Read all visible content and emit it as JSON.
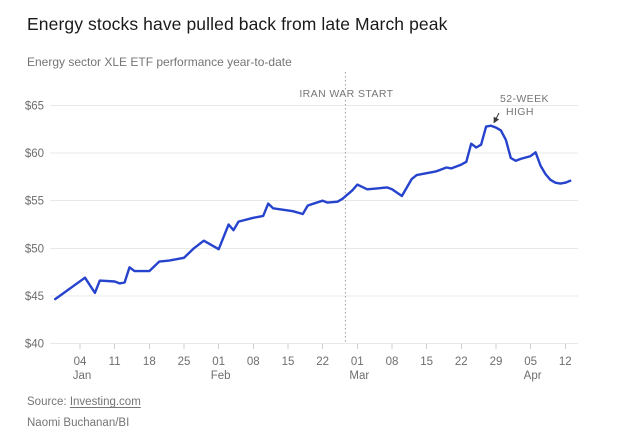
{
  "header": {
    "title": "Energy stocks have pulled back from late March peak",
    "subtitle": "Energy sector XLE ETF performance year-to-date"
  },
  "footer": {
    "source_prefix": "Source: ",
    "source_link": "Investing.com",
    "byline": "Naomi Buchanan/BI"
  },
  "colors": {
    "line": "#2643cd",
    "grid": "#e8e8e8",
    "tick_mark": "#cccccc",
    "axis_text": "#6e6e6e",
    "annotation_text": "#757575",
    "event_line": "#9e9e9e",
    "arrow": "#3a3a3a",
    "title_text": "#1a1a1a"
  },
  "chart_data": {
    "type": "line",
    "title": "Energy sector XLE ETF performance year-to-date",
    "ylabel": "",
    "xlabel": "",
    "ylim": [
      40,
      65
    ],
    "grid": "horizontal",
    "y_ticks": [
      {
        "value": 40,
        "label": "$40"
      },
      {
        "value": 45,
        "label": "$45"
      },
      {
        "value": 50,
        "label": "$50"
      },
      {
        "value": 55,
        "label": "$55"
      },
      {
        "value": 60,
        "label": "$60"
      },
      {
        "value": 65,
        "label": "$65"
      }
    ],
    "x_ticks": [
      {
        "date": "Jan 04",
        "label": "04",
        "month": "Jan"
      },
      {
        "date": "Jan 11",
        "label": "11",
        "month": ""
      },
      {
        "date": "Jan 18",
        "label": "18",
        "month": ""
      },
      {
        "date": "Jan 25",
        "label": "25",
        "month": ""
      },
      {
        "date": "Feb 01",
        "label": "01",
        "month": "Feb"
      },
      {
        "date": "Feb 08",
        "label": "08",
        "month": ""
      },
      {
        "date": "Feb 15",
        "label": "15",
        "month": ""
      },
      {
        "date": "Feb 22",
        "label": "22",
        "month": ""
      },
      {
        "date": "Mar 01",
        "label": "01",
        "month": "Mar"
      },
      {
        "date": "Mar 08",
        "label": "08",
        "month": ""
      },
      {
        "date": "Mar 15",
        "label": "15",
        "month": ""
      },
      {
        "date": "Mar 22",
        "label": "22",
        "month": ""
      },
      {
        "date": "Mar 29",
        "label": "29",
        "month": ""
      },
      {
        "date": "Apr 05",
        "label": "05",
        "month": "Apr"
      },
      {
        "date": "Apr 12",
        "label": "12",
        "month": ""
      }
    ],
    "annotations": {
      "event_line": {
        "label": "IRAN WAR START",
        "date": "Feb 27",
        "style": "dotted-vertical"
      },
      "high": {
        "label_lines": [
          "52-WEEK",
          "HIGH"
        ],
        "date": "Mar 28",
        "value": 62.9
      }
    },
    "series": [
      {
        "name": "XLE",
        "points": [
          {
            "date": "Dec 30",
            "value": 44.65
          },
          {
            "date": "Jan 05",
            "value": 46.9
          },
          {
            "date": "Jan 07",
            "value": 45.3
          },
          {
            "date": "Jan 08",
            "value": 46.6
          },
          {
            "date": "Jan 11",
            "value": 46.5
          },
          {
            "date": "Jan 12",
            "value": 46.3
          },
          {
            "date": "Jan 13",
            "value": 46.4
          },
          {
            "date": "Jan 14",
            "value": 48.0
          },
          {
            "date": "Jan 15",
            "value": 47.6
          },
          {
            "date": "Jan 18",
            "value": 47.6
          },
          {
            "date": "Jan 20",
            "value": 48.6
          },
          {
            "date": "Jan 22",
            "value": 48.7
          },
          {
            "date": "Jan 25",
            "value": 49.0
          },
          {
            "date": "Jan 27",
            "value": 50.0
          },
          {
            "date": "Jan 29",
            "value": 50.8
          },
          {
            "date": "Feb 01",
            "value": 49.9
          },
          {
            "date": "Feb 03",
            "value": 52.5
          },
          {
            "date": "Feb 04",
            "value": 51.9
          },
          {
            "date": "Feb 05",
            "value": 52.8
          },
          {
            "date": "Feb 08",
            "value": 53.2
          },
          {
            "date": "Feb 10",
            "value": 53.4
          },
          {
            "date": "Feb 11",
            "value": 54.7
          },
          {
            "date": "Feb 12",
            "value": 54.2
          },
          {
            "date": "Feb 16",
            "value": 53.9
          },
          {
            "date": "Feb 18",
            "value": 53.6
          },
          {
            "date": "Feb 19",
            "value": 54.5
          },
          {
            "date": "Feb 22",
            "value": 55.0
          },
          {
            "date": "Feb 23",
            "value": 54.8
          },
          {
            "date": "Feb 25",
            "value": 54.9
          },
          {
            "date": "Feb 26",
            "value": 55.2
          },
          {
            "date": "Feb 28",
            "value": 56.1
          },
          {
            "date": "Mar 01",
            "value": 56.7
          },
          {
            "date": "Mar 03",
            "value": 56.2
          },
          {
            "date": "Mar 05",
            "value": 56.3
          },
          {
            "date": "Mar 07",
            "value": 56.4
          },
          {
            "date": "Mar 08",
            "value": 56.2
          },
          {
            "date": "Mar 10",
            "value": 55.5
          },
          {
            "date": "Mar 12",
            "value": 57.3
          },
          {
            "date": "Mar 13",
            "value": 57.7
          },
          {
            "date": "Mar 15",
            "value": 57.9
          },
          {
            "date": "Mar 17",
            "value": 58.1
          },
          {
            "date": "Mar 19",
            "value": 58.5
          },
          {
            "date": "Mar 20",
            "value": 58.4
          },
          {
            "date": "Mar 22",
            "value": 58.8
          },
          {
            "date": "Mar 23",
            "value": 59.1
          },
          {
            "date": "Mar 24",
            "value": 61.0
          },
          {
            "date": "Mar 25",
            "value": 60.6
          },
          {
            "date": "Mar 26",
            "value": 60.9
          },
          {
            "date": "Mar 27",
            "value": 62.8
          },
          {
            "date": "Mar 28",
            "value": 62.9
          },
          {
            "date": "Mar 29",
            "value": 62.7
          },
          {
            "date": "Mar 30",
            "value": 62.4
          },
          {
            "date": "Mar 31",
            "value": 61.4
          },
          {
            "date": "Apr 01",
            "value": 59.5
          },
          {
            "date": "Apr 02",
            "value": 59.2
          },
          {
            "date": "Apr 03",
            "value": 59.4
          },
          {
            "date": "Apr 05",
            "value": 59.7
          },
          {
            "date": "Apr 06",
            "value": 60.1
          },
          {
            "date": "Apr 07",
            "value": 58.7
          },
          {
            "date": "Apr 08",
            "value": 57.8
          },
          {
            "date": "Apr 09",
            "value": 57.2
          },
          {
            "date": "Apr 10",
            "value": 56.9
          },
          {
            "date": "Apr 11",
            "value": 56.8
          },
          {
            "date": "Apr 12",
            "value": 56.9
          },
          {
            "date": "Apr 13",
            "value": 57.1
          }
        ]
      }
    ]
  }
}
